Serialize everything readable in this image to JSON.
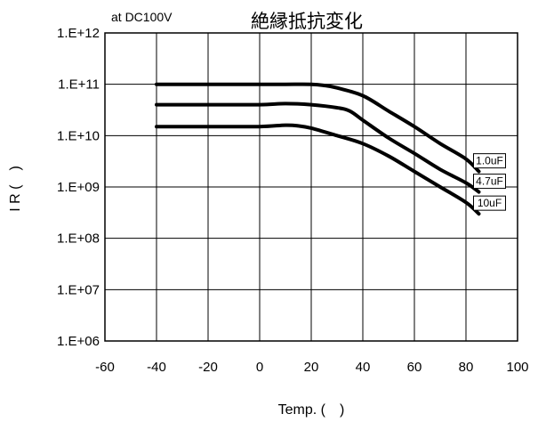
{
  "chart_data": {
    "type": "line",
    "title": "絶縁抵抗変化",
    "subtitle": "at DC100V",
    "xlabel": "Temp. (　)",
    "ylabel": "I R (　)",
    "xlim": [
      -60,
      100
    ],
    "ylim": [
      1000000,
      1000000000000
    ],
    "y_scale": "log",
    "grid": true,
    "x_ticks": [
      -60,
      -40,
      -20,
      0,
      20,
      40,
      60,
      80,
      100
    ],
    "x_tick_labels": [
      "-60",
      "-40",
      "-20",
      "0",
      "20",
      "40",
      "60",
      "80",
      "100"
    ],
    "y_ticks": [
      1000000,
      10000000,
      100000000,
      1000000000,
      10000000000,
      100000000000,
      1000000000000
    ],
    "y_tick_labels": [
      "1.E+06",
      "1.E+07",
      "1.E+08",
      "1.E+09",
      "1.E+10",
      "1.E+11",
      "1.E+12"
    ],
    "series": [
      {
        "name": "1.0uF",
        "x": [
          -40,
          -20,
          0,
          10,
          20,
          25,
          30,
          40,
          50,
          60,
          70,
          80,
          85
        ],
        "y": [
          100000000000,
          100000000000,
          100000000000,
          100000000000,
          100000000000,
          95000000000,
          85000000000,
          60000000000,
          30000000000,
          15000000000,
          7000000000,
          3500000000,
          2000000000
        ]
      },
      {
        "name": "4.7uF",
        "x": [
          -40,
          -20,
          0,
          10,
          20,
          30,
          35,
          40,
          50,
          60,
          70,
          80,
          85
        ],
        "y": [
          40000000000,
          40000000000,
          40000000000,
          42000000000,
          40000000000,
          35000000000,
          30000000000,
          20000000000,
          9000000000,
          4500000000,
          2200000000,
          1200000000,
          800000000
        ]
      },
      {
        "name": "10uF",
        "x": [
          -40,
          -20,
          0,
          10,
          15,
          20,
          30,
          40,
          50,
          60,
          70,
          80,
          85
        ],
        "y": [
          15000000000,
          15000000000,
          15000000000,
          16000000000,
          15500000000,
          14000000000,
          10000000000,
          7000000000,
          4000000000,
          2000000000,
          1000000000,
          500000000,
          300000000
        ]
      }
    ]
  }
}
